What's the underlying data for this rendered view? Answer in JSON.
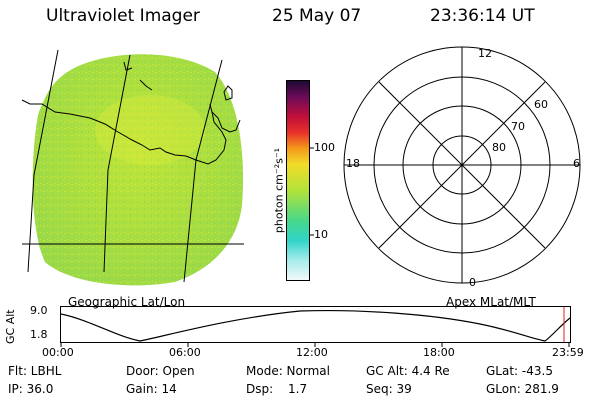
{
  "header": {
    "title": "Ultraviolet Imager",
    "date": "25 May 07",
    "time": "23:36:14 UT"
  },
  "image_panel": {
    "projection_label": "Geographic Lat/Lon"
  },
  "colorbar": {
    "unit_label": "photon cm⁻²s⁻¹",
    "tick_100": "100",
    "tick_10": "10"
  },
  "polar_plot": {
    "label": "Apex MLat/MLT",
    "mlt_top": "12",
    "mlt_left": "18",
    "mlt_right": "6",
    "mlt_bottom": "0",
    "lat_60": "60",
    "lat_70": "70",
    "lat_80": "80"
  },
  "orbit_plot": {
    "axis_label": "GC Alt",
    "y_top": "9.0",
    "y_bottom": "1.8",
    "x_ticks": [
      "00:00",
      "06:00",
      "12:00",
      "18:00",
      "23:59"
    ]
  },
  "status": {
    "flt": "Flt: LBHL",
    "door": "Door: Open",
    "mode": "Mode: Normal",
    "gc_alt": "GC Alt: 4.4 Re",
    "glat": "GLat: -43.5",
    "ip": "IP: 36.0",
    "gain": "Gain: 14",
    "dsp_label": "Dsp:",
    "dsp_value": "1.7",
    "seq": "Seq: 39",
    "glon": "GLon: 281.9"
  },
  "colors": {
    "disk_green": "#a8e03c",
    "disk_yellow": "#d8ec3a",
    "line": "#000000"
  }
}
